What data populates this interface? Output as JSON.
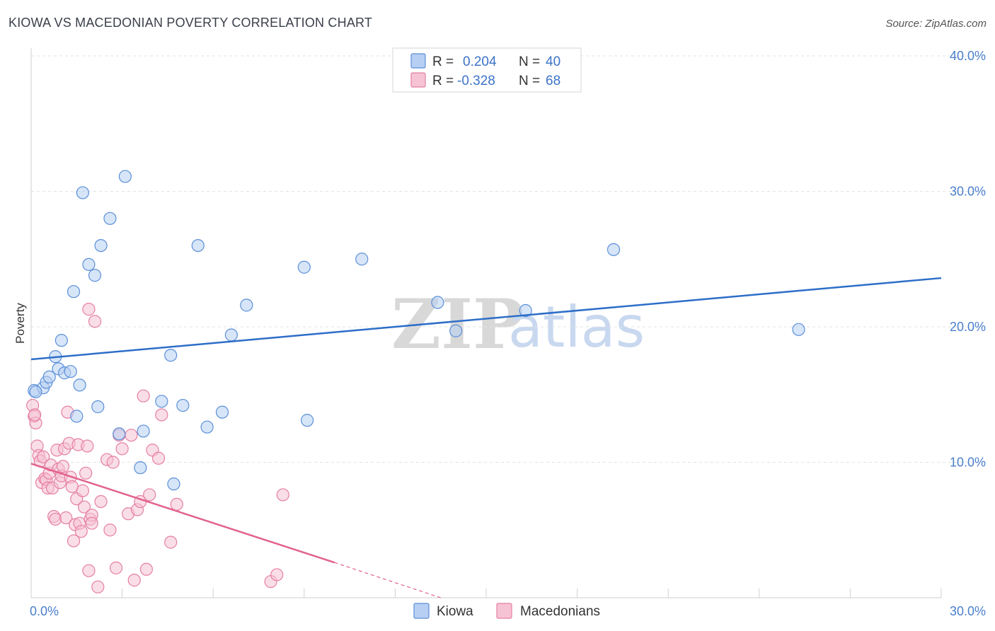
{
  "title": "KIOWA VS MACEDONIAN POVERTY CORRELATION CHART",
  "source": "Source: ZipAtlas.com",
  "watermark": {
    "zip": "ZIP",
    "atlas": "atlas"
  },
  "legend_top": {
    "kiowa": {
      "r_label": "R =",
      "r_value": "0.204",
      "n_label": "N =",
      "n_value": "40"
    },
    "macedonians": {
      "r_label": "R =",
      "r_value": "-0.328",
      "n_label": "N =",
      "n_value": "68"
    }
  },
  "colors": {
    "blue_fill": "#b7cff2",
    "blue_stroke": "#5b8fd8",
    "blue_line": "#2d6ec8",
    "pink_fill": "#f6c3d4",
    "pink_stroke": "#e57fa3",
    "pink_line": "#e2628f",
    "grid": "#e3e3e3",
    "tick_text": "#4a7fcc"
  },
  "chart_data": {
    "type": "scatter",
    "title": "KIOWA VS MACEDONIAN POVERTY CORRELATION CHART",
    "xlabel": "",
    "ylabel": "Poverty",
    "xlim": [
      0,
      30
    ],
    "ylim": [
      0,
      40
    ],
    "x_ticks": [
      {
        "v": 0,
        "label": "0.0%"
      },
      {
        "v": 30,
        "label": "30.0%"
      }
    ],
    "y_ticks": [
      {
        "v": 10,
        "label": "10.0%"
      },
      {
        "v": 20,
        "label": "20.0%"
      },
      {
        "v": 30,
        "label": "30.0%"
      },
      {
        "v": 40,
        "label": "40.0%"
      }
    ],
    "series": [
      {
        "name": "Kiowa",
        "r": 0.204,
        "n": 40,
        "trend": {
          "x": [
            0,
            30
          ],
          "y": [
            17.6,
            23.6
          ]
        },
        "points": [
          [
            0.1,
            15.3
          ],
          [
            0.4,
            15.5
          ],
          [
            0.5,
            15.9
          ],
          [
            0.6,
            16.3
          ],
          [
            0.8,
            17.8
          ],
          [
            0.9,
            16.9
          ],
          [
            1.0,
            19.0
          ],
          [
            1.1,
            16.6
          ],
          [
            1.3,
            16.7
          ],
          [
            1.4,
            22.6
          ],
          [
            1.5,
            13.4
          ],
          [
            1.6,
            15.7
          ],
          [
            1.7,
            29.9
          ],
          [
            1.9,
            24.6
          ],
          [
            2.1,
            23.8
          ],
          [
            2.2,
            14.1
          ],
          [
            2.3,
            26.0
          ],
          [
            2.6,
            28.0
          ],
          [
            2.9,
            12.1
          ],
          [
            3.1,
            31.1
          ],
          [
            3.6,
            9.6
          ],
          [
            3.7,
            12.3
          ],
          [
            4.3,
            14.5
          ],
          [
            4.6,
            17.9
          ],
          [
            4.7,
            8.4
          ],
          [
            5.0,
            14.2
          ],
          [
            5.5,
            26.0
          ],
          [
            5.8,
            12.6
          ],
          [
            6.3,
            13.7
          ],
          [
            6.6,
            19.4
          ],
          [
            7.1,
            21.6
          ],
          [
            9.0,
            24.4
          ],
          [
            9.1,
            13.1
          ],
          [
            10.9,
            25.0
          ],
          [
            13.4,
            21.8
          ],
          [
            14.0,
            19.7
          ],
          [
            16.3,
            21.2
          ],
          [
            19.2,
            25.7
          ],
          [
            25.3,
            19.8
          ],
          [
            0.15,
            15.2
          ]
        ]
      },
      {
        "name": "Macedonians",
        "r": -0.328,
        "n": 68,
        "trend": {
          "x": [
            0,
            10.0
          ],
          "y": [
            9.9,
            2.6
          ],
          "dashed_to": [
            13.5,
            0
          ]
        },
        "points": [
          [
            0.05,
            14.2
          ],
          [
            0.1,
            13.4
          ],
          [
            0.15,
            12.9
          ],
          [
            0.2,
            11.2
          ],
          [
            0.25,
            10.5
          ],
          [
            0.3,
            10.1
          ],
          [
            0.35,
            8.5
          ],
          [
            0.4,
            10.4
          ],
          [
            0.45,
            8.8
          ],
          [
            0.5,
            8.7
          ],
          [
            0.55,
            8.1
          ],
          [
            0.6,
            9.2
          ],
          [
            0.65,
            9.8
          ],
          [
            0.7,
            8.1
          ],
          [
            0.75,
            6.0
          ],
          [
            0.8,
            5.8
          ],
          [
            0.85,
            10.9
          ],
          [
            0.9,
            9.5
          ],
          [
            0.95,
            8.5
          ],
          [
            1.0,
            9.0
          ],
          [
            1.05,
            9.7
          ],
          [
            1.1,
            11.0
          ],
          [
            1.15,
            5.9
          ],
          [
            1.2,
            13.7
          ],
          [
            1.25,
            11.4
          ],
          [
            1.3,
            8.9
          ],
          [
            1.35,
            8.2
          ],
          [
            1.4,
            4.2
          ],
          [
            1.45,
            5.4
          ],
          [
            1.5,
            7.3
          ],
          [
            1.55,
            11.3
          ],
          [
            1.6,
            5.5
          ],
          [
            1.65,
            4.9
          ],
          [
            1.7,
            7.9
          ],
          [
            1.75,
            6.7
          ],
          [
            1.8,
            9.2
          ],
          [
            1.85,
            11.2
          ],
          [
            1.9,
            2.0
          ],
          [
            1.95,
            5.8
          ],
          [
            2.0,
            6.1
          ],
          [
            1.9,
            21.3
          ],
          [
            2.0,
            5.5
          ],
          [
            2.1,
            20.4
          ],
          [
            2.2,
            0.8
          ],
          [
            2.3,
            7.1
          ],
          [
            2.5,
            10.2
          ],
          [
            2.6,
            5.0
          ],
          [
            2.7,
            10.0
          ],
          [
            2.8,
            2.2
          ],
          [
            2.9,
            12.0
          ],
          [
            3.0,
            11.0
          ],
          [
            3.2,
            6.2
          ],
          [
            3.3,
            12.0
          ],
          [
            3.4,
            1.3
          ],
          [
            3.5,
            6.5
          ],
          [
            3.6,
            7.1
          ],
          [
            3.7,
            14.9
          ],
          [
            3.8,
            2.1
          ],
          [
            3.9,
            7.6
          ],
          [
            4.0,
            10.9
          ],
          [
            4.2,
            10.3
          ],
          [
            4.3,
            13.5
          ],
          [
            4.6,
            4.1
          ],
          [
            4.8,
            6.9
          ],
          [
            7.9,
            1.2
          ],
          [
            8.1,
            1.7
          ],
          [
            8.3,
            7.6
          ],
          [
            0.12,
            13.5
          ]
        ]
      }
    ]
  }
}
